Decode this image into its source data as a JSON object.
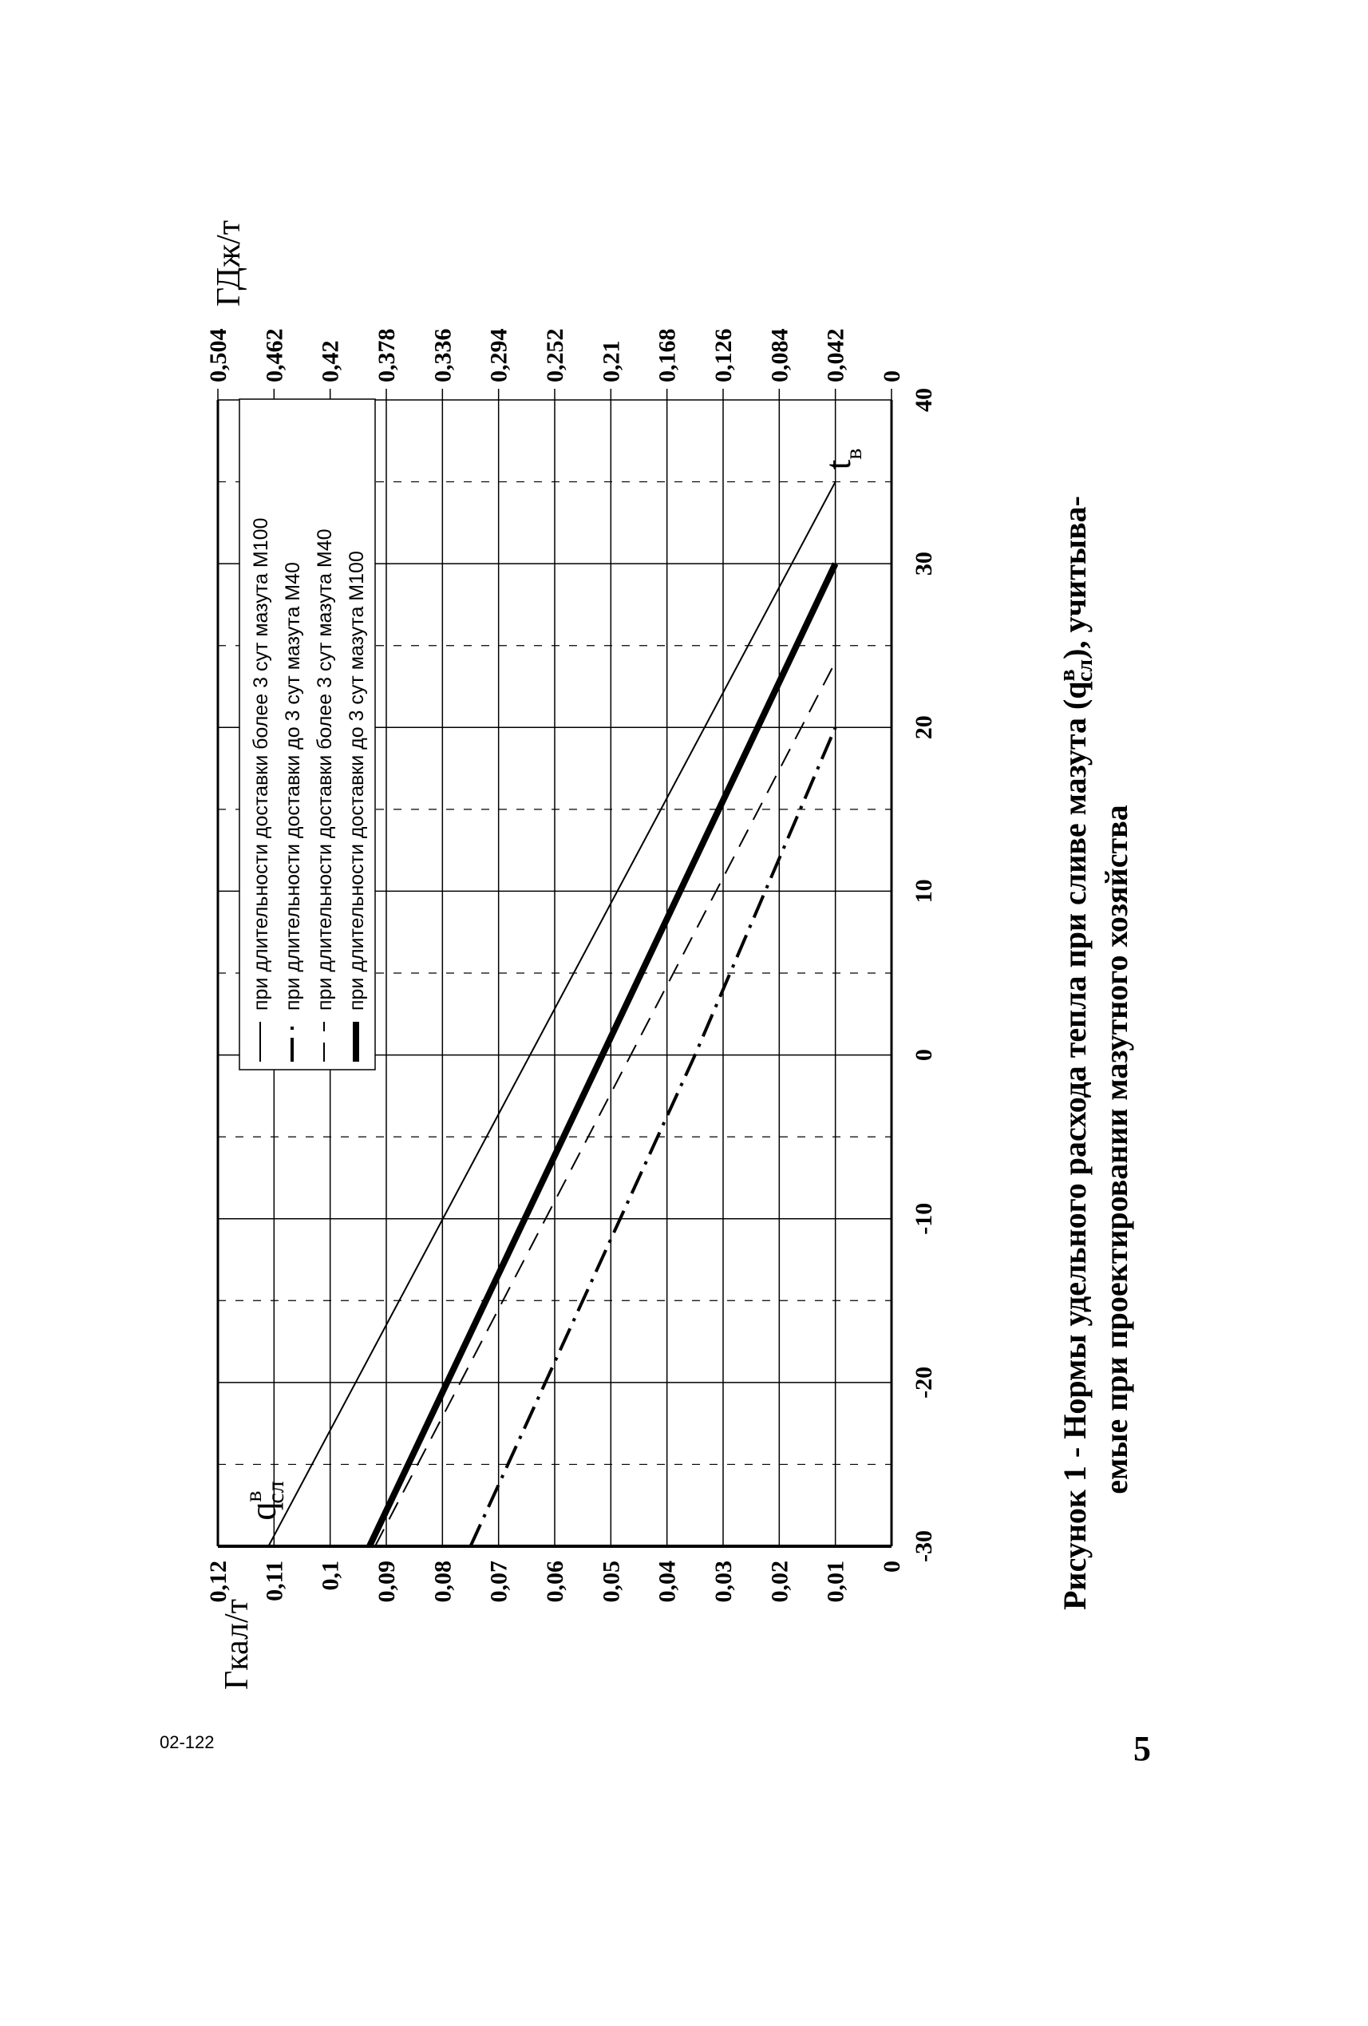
{
  "doc_number": "02-122",
  "page_number": "5",
  "caption": {
    "part1": "Рисунок 1 - Нормы удельного расхода тепла при сливе мазута (q",
    "sup": "в",
    "sub": "сл",
    "part2": "), учитыва-",
    "line2": "емые при проектировании мазутного хозяйства"
  },
  "chart_data": {
    "type": "line",
    "y_label": "Гкал/т",
    "y2_label": "ГДж/т",
    "y_symbol": {
      "main": "q",
      "sup": "в",
      "sub": "сл"
    },
    "x_symbol": {
      "main": "t",
      "sub": "в"
    },
    "xlim": [
      -30,
      40
    ],
    "xticks": [
      -30,
      -20,
      -10,
      0,
      10,
      20,
      30,
      40
    ],
    "minor_xticks": [
      -25,
      -15,
      -5,
      5,
      15,
      25,
      35
    ],
    "ylim": [
      0,
      0.12
    ],
    "yticks": [
      0,
      {
        "value": 0.01,
        "label": "0,01"
      },
      {
        "value": 0.02,
        "label": "0,02"
      },
      {
        "value": 0.03,
        "label": "0,03"
      },
      {
        "value": 0.04,
        "label": "0,04"
      },
      {
        "value": 0.05,
        "label": "0,05"
      },
      {
        "value": 0.06,
        "label": "0,06"
      },
      {
        "value": 0.07,
        "label": "0,07"
      },
      {
        "value": 0.08,
        "label": "0,08"
      },
      {
        "value": 0.09,
        "label": "0,09"
      },
      {
        "value": 0.1,
        "label": "0,1"
      },
      {
        "value": 0.11,
        "label": "0,11"
      },
      {
        "value": 0.12,
        "label": "0,12"
      }
    ],
    "y2lim": [
      0,
      0.504
    ],
    "y2ticks": [
      0,
      {
        "value": 0.042,
        "label": "0,042"
      },
      {
        "value": 0.084,
        "label": "0,084"
      },
      {
        "value": 0.126,
        "label": "0,126"
      },
      {
        "value": 0.168,
        "label": "0,168"
      },
      {
        "value": 0.21,
        "label": "0,21"
      },
      {
        "value": 0.252,
        "label": "0,252"
      },
      {
        "value": 0.294,
        "label": "0,294"
      },
      {
        "value": 0.336,
        "label": "0,336"
      },
      {
        "value": 0.378,
        "label": "0,378"
      },
      {
        "value": 0.42,
        "label": "0,42"
      },
      {
        "value": 0.462,
        "label": "0,462"
      },
      {
        "value": 0.504,
        "label": "0,504"
      }
    ],
    "grid": true,
    "series": [
      {
        "name": "при длительности доставки более 3 сут мазута М100",
        "color": "#000000",
        "line_style": "solid",
        "line_width": 2,
        "x": [
          -30,
          35
        ],
        "values": [
          0.111,
          0.01
        ]
      },
      {
        "name": "при длительности доставки до 3 сут мазута М40",
        "color": "#000000",
        "line_style": "dash-dot",
        "line_width": 4,
        "x": [
          -30,
          0,
          20
        ],
        "values": [
          0.075,
          0.035,
          0.01
        ]
      },
      {
        "name": "при длительности доставки более 3 сут мазута М40",
        "color": "#000000",
        "line_style": "dashed",
        "line_width": 2,
        "x": [
          -30,
          24
        ],
        "values": [
          0.092,
          0.01
        ]
      },
      {
        "name": "при длительности доставки до 3 сут мазута М100",
        "color": "#000000",
        "line_style": "solid",
        "line_width": 8,
        "x": [
          -30,
          30
        ],
        "values": [
          0.093,
          0.01
        ]
      }
    ]
  }
}
